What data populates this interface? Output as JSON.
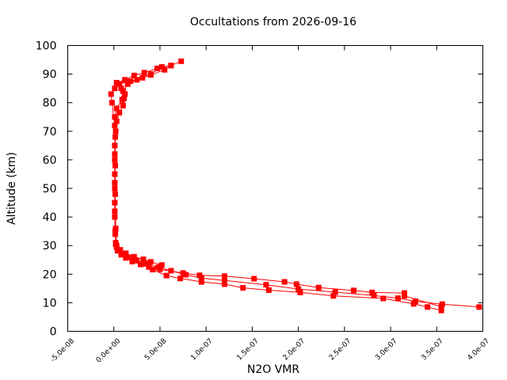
{
  "chart_data": {
    "type": "line",
    "title": "Occultations from 2026-09-16",
    "xlabel": "N2O VMR",
    "ylabel": "Altitude (km)",
    "xlim": [
      -5e-08,
      4e-07
    ],
    "ylim": [
      0,
      100
    ],
    "x_ticks": [
      -5e-08,
      0,
      5e-08,
      1e-07,
      1.5e-07,
      2e-07,
      2.5e-07,
      3e-07,
      3.5e-07,
      4e-07
    ],
    "x_tick_labels": [
      "-5.0e-08",
      "0.0e+00",
      "5.0e-08",
      "1.0e-07",
      "1.5e-07",
      "2.0e-07",
      "2.5e-07",
      "3.0e-07",
      "3.5e-07",
      "4.0e-07"
    ],
    "y_ticks": [
      0,
      10,
      20,
      30,
      40,
      50,
      60,
      70,
      80,
      90,
      100
    ],
    "y_tick_labels": [
      "0",
      "10",
      "20",
      "30",
      "40",
      "50",
      "60",
      "70",
      "80",
      "90",
      "100"
    ],
    "grid": false,
    "legend": "none",
    "series_color": "#ff0000",
    "marker": "square",
    "series": [
      {
        "points": [
          [
            3.96e-07,
            8.5
          ],
          [
            3.56e-07,
            9.5
          ],
          [
            3.27e-07,
            10.5
          ],
          [
            3.08e-07,
            11.6
          ],
          [
            2.82e-07,
            12.5
          ],
          [
            2.4e-07,
            13.7
          ],
          [
            2e-07,
            14.8
          ],
          [
            1.65e-07,
            16.3
          ],
          [
            1.2e-07,
            17.8
          ],
          [
            9.5e-08,
            18.6
          ],
          [
            7.8e-08,
            19.8
          ],
          [
            6.2e-08,
            21.2
          ],
          [
            4.8e-08,
            22.4
          ],
          [
            3.5e-08,
            23.6
          ],
          [
            2.5e-08,
            24.8
          ],
          [
            1.6e-08,
            25.9
          ],
          [
            9e-09,
            27.0
          ],
          [
            5e-09,
            28.3
          ],
          [
            3e-09,
            29.4
          ],
          [
            2e-09,
            31.0
          ],
          [
            1.5e-09,
            35.0
          ],
          [
            1e-09,
            40.0
          ],
          [
            1e-09,
            45.0
          ],
          [
            1e-09,
            50.0
          ],
          [
            1e-09,
            55.0
          ],
          [
            1e-09,
            60.0
          ],
          [
            1e-09,
            65.0
          ],
          [
            2e-09,
            70.0
          ],
          [
            3e-09,
            73.5
          ],
          [
            6e-09,
            76.5
          ],
          [
            1e-08,
            79.0
          ],
          [
            1.1e-08,
            81.5
          ],
          [
            1e-08,
            84.0
          ],
          [
            1.5e-08,
            86.5
          ],
          [
            2.5e-08,
            88.0
          ],
          [
            4e-08,
            89.7
          ],
          [
            5.5e-08,
            91.5
          ],
          [
            6.2e-08,
            93.0
          ],
          [
            7.3e-08,
            94.5
          ]
        ]
      },
      {
        "points": [
          [
            3.55e-07,
            7.3
          ],
          [
            3.4e-07,
            8.5
          ],
          [
            3.25e-07,
            9.6
          ],
          [
            2.92e-07,
            11.5
          ],
          [
            2.38e-07,
            12.4
          ],
          [
            2.02e-07,
            13.6
          ],
          [
            1.68e-07,
            14.4
          ],
          [
            1.4e-07,
            15.2
          ],
          [
            1.2e-07,
            16.5
          ],
          [
            9.5e-08,
            17.3
          ],
          [
            7.2e-08,
            18.5
          ],
          [
            5.7e-08,
            19.5
          ],
          [
            4.2e-08,
            21.6
          ],
          [
            3.8e-08,
            22.5
          ],
          [
            2.9e-08,
            23.4
          ],
          [
            2e-08,
            24.4
          ],
          [
            1.3e-08,
            25.7
          ],
          [
            8e-09,
            26.8
          ],
          [
            4e-09,
            28.2
          ],
          [
            2e-09,
            30.5
          ],
          [
            1.5e-09,
            34.0
          ],
          [
            1e-09,
            42.0
          ],
          [
            1e-09,
            52.0
          ],
          [
            1e-09,
            62.0
          ],
          [
            1e-09,
            72.0
          ],
          [
            -2e-09,
            80.0
          ],
          [
            -3e-09,
            83.0
          ],
          [
            1e-09,
            85.0
          ],
          [
            6e-09,
            86.5
          ],
          [
            1.8e-08,
            87.5
          ],
          [
            3.1e-08,
            88.7
          ],
          [
            4e-08,
            90.0
          ],
          [
            5.2e-08,
            92.5
          ],
          [
            6.2e-08,
            93.0
          ]
        ]
      },
      {
        "points": [
          [
            3.55e-07,
            8.6
          ],
          [
            3.15e-07,
            12.4
          ],
          [
            3.15e-07,
            13.4
          ],
          [
            2.8e-07,
            13.6
          ],
          [
            2.6e-07,
            14.3
          ],
          [
            2.22e-07,
            15.3
          ],
          [
            1.98e-07,
            16.5
          ],
          [
            1.85e-07,
            17.3
          ],
          [
            1.52e-07,
            18.4
          ],
          [
            1.2e-07,
            19.3
          ],
          [
            9.3e-08,
            19.6
          ],
          [
            7.5e-08,
            20.4
          ],
          [
            5e-08,
            21.7
          ],
          [
            5.2e-08,
            23.2
          ],
          [
            4e-08,
            24.3
          ],
          [
            3.2e-08,
            25.2
          ],
          [
            2.2e-08,
            26.1
          ],
          [
            1.3e-08,
            27.3
          ],
          [
            7e-09,
            28.5
          ],
          [
            3e-09,
            30.0
          ],
          [
            2e-09,
            36.0
          ],
          [
            1.5e-09,
            48.0
          ],
          [
            1.5e-09,
            58.0
          ],
          [
            1.5e-09,
            68.0
          ],
          [
            1e-09,
            75.0
          ],
          [
            3e-09,
            78.0
          ],
          [
            9e-09,
            81.0
          ],
          [
            1.2e-08,
            83.0
          ],
          [
            8e-09,
            85.0
          ],
          [
            3e-09,
            87.0
          ],
          [
            1.2e-08,
            88.0
          ],
          [
            2.2e-08,
            89.5
          ],
          [
            3.3e-08,
            90.5
          ],
          [
            4.7e-08,
            92.0
          ]
        ]
      }
    ]
  }
}
